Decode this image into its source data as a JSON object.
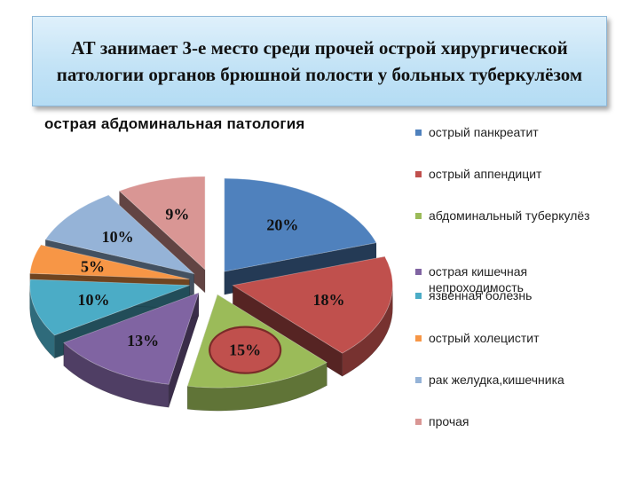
{
  "slide": {
    "title": "АТ занимает 3-е место среди прочей острой хирургической патологии органов брюшной полости у больных туберкулёзом"
  },
  "chart_data": {
    "type": "pie",
    "title": "острая абдоминальная патология",
    "start_angle_deg": 0,
    "legend_position": "right",
    "highlighted_category": "абдоминальный туберкулёз",
    "highlight_color": "#c0504d",
    "slices": [
      {
        "name": "острый панкреатит",
        "value": 20,
        "label": "20%",
        "color": "#4f81bd"
      },
      {
        "name": "острый аппендицит",
        "value": 18,
        "label": "18%",
        "color": "#c0504d"
      },
      {
        "name": "абдоминальный туберкулёз",
        "value": 15,
        "label": "15%",
        "color": "#9bbb59"
      },
      {
        "name": "острая кишечная непроходимость",
        "value": 13,
        "label": "13%",
        "color": "#8064a2"
      },
      {
        "name": "язвенная болезнь",
        "value": 10,
        "label": "10%",
        "color": "#4bacc6"
      },
      {
        "name": "острый холецистит",
        "value": 5,
        "label": "5%",
        "color": "#f79646"
      },
      {
        "name": "рак желудка,кишечника",
        "value": 10,
        "label": "10%",
        "color": "#95b3d7"
      },
      {
        "name": "прочая",
        "value": 9,
        "label": "9%",
        "color": "#d99694"
      }
    ]
  }
}
